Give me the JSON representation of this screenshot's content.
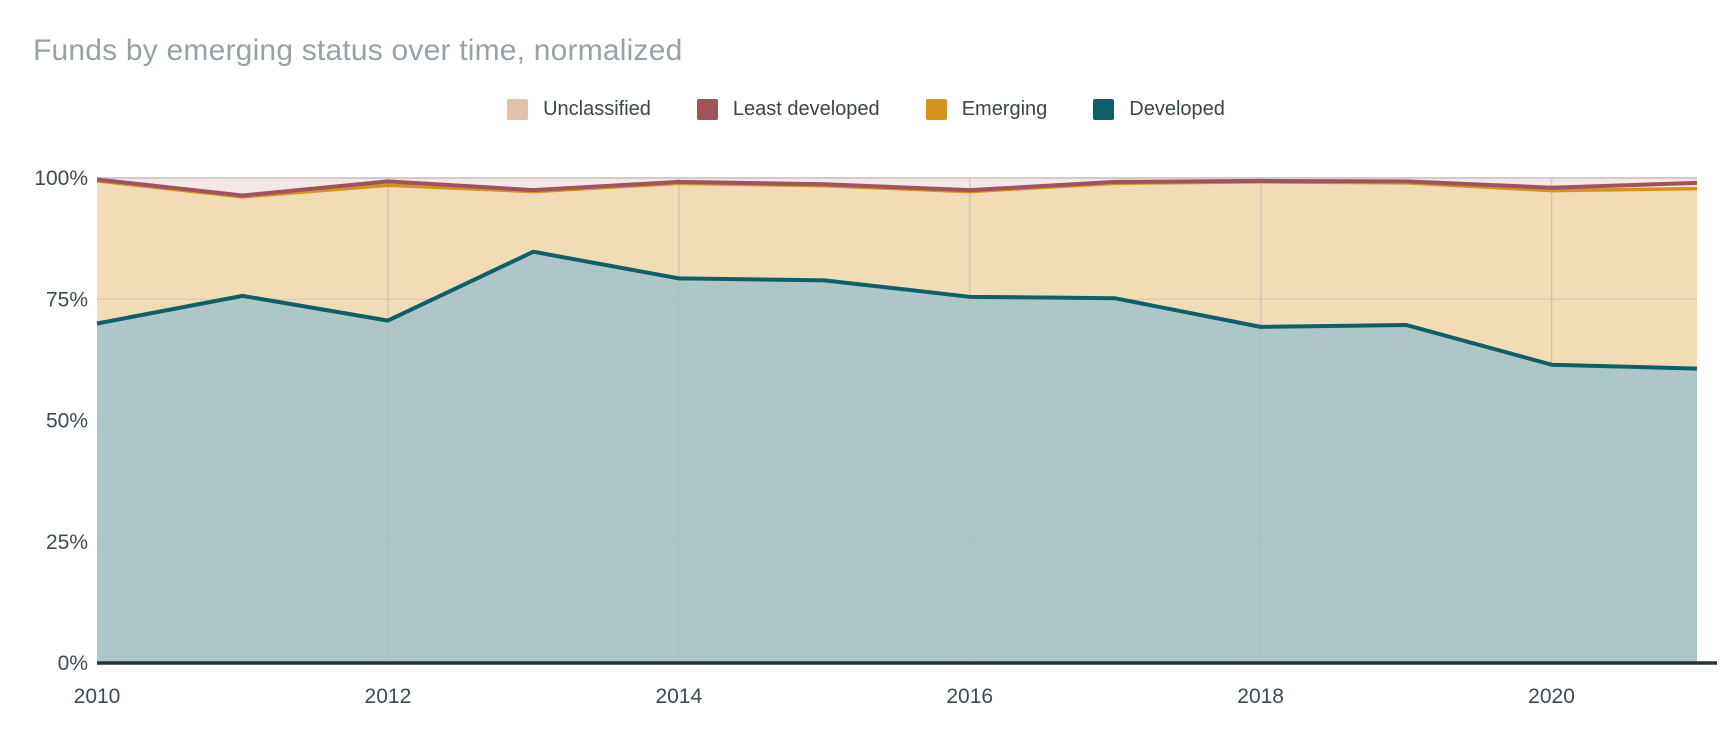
{
  "page": {
    "title": "Funds by emerging status over time, normalized"
  },
  "legend": {
    "position": "top",
    "items": [
      {
        "label": "Unclassified",
        "color": "#dfc3a7"
      },
      {
        "label": "Least developed",
        "color": "#a2525b"
      },
      {
        "label": "Emerging",
        "color": "#d5921e"
      },
      {
        "label": "Developed",
        "color": "#0f5f69"
      }
    ]
  },
  "chart_data": {
    "type": "area",
    "stacked": true,
    "normalized": true,
    "title": "Funds by emerging status over time, normalized",
    "x": [
      2010,
      2011,
      2012,
      2013,
      2014,
      2015,
      2016,
      2017,
      2018,
      2019,
      2020,
      2021
    ],
    "series": [
      {
        "name": "Unclassified",
        "color": "#dfc3a7",
        "fill": "#f2dcb5",
        "values": [
          29.4,
          20.4,
          27.9,
          12.4,
          19.6,
          19.5,
          21.7,
          23.7,
          29.9,
          29.3,
          35.9,
          37.1
        ]
      },
      {
        "name": "Least developed",
        "color": "#a2525b",
        "fill": "#f3e7e7",
        "values": [
          0.3,
          3.6,
          0.7,
          2.5,
          0.8,
          1.3,
          2.5,
          0.8,
          0.6,
          0.7,
          2.0,
          1.0
        ]
      },
      {
        "name": "Emerging",
        "color": "#d5921e",
        "fill": "#f7e9d3",
        "values": [
          0.3,
          0.3,
          0.8,
          0.3,
          0.3,
          0.3,
          0.3,
          0.3,
          0.2,
          0.3,
          0.6,
          1.2
        ]
      },
      {
        "name": "Developed",
        "color": "#0f5f69",
        "fill": "#adc7c9",
        "values": [
          70.0,
          75.7,
          70.6,
          84.8,
          79.3,
          78.9,
          75.5,
          75.2,
          69.3,
          69.7,
          61.5,
          60.7
        ]
      }
    ],
    "stack_order_bottom_to_top": [
      "Developed",
      "Unclassified",
      "Emerging",
      "Least developed"
    ],
    "boundary_lines": [
      {
        "after": "Developed",
        "color": "#0f5f69",
        "width": 4
      },
      {
        "after": "Unclassified",
        "color": "#d5921e",
        "width": 3.5
      },
      {
        "after": "Emerging",
        "color": "#a2525b",
        "width": 4
      }
    ],
    "yticks": [
      {
        "label": "0%",
        "value": 0
      },
      {
        "label": "25%",
        "value": 25
      },
      {
        "label": "50%",
        "value": 50
      },
      {
        "label": "75%",
        "value": 75
      },
      {
        "label": "100%",
        "value": 100
      }
    ],
    "xticks": [
      {
        "label": "2010",
        "value": 2010
      },
      {
        "label": "2012",
        "value": 2012
      },
      {
        "label": "2014",
        "value": 2014
      },
      {
        "label": "2016",
        "value": 2016
      },
      {
        "label": "2018",
        "value": 2018
      },
      {
        "label": "2020",
        "value": 2020
      }
    ],
    "ylim": [
      0,
      100
    ],
    "grid": true,
    "legend_position": "top",
    "colors": {
      "title_text": "#98a1a5",
      "axis_label": "#3e4b52",
      "gridline": "#b7b7b7",
      "hundred_line": "#d2cbca",
      "baseline": "#2a3439",
      "background": "#ffffff"
    }
  }
}
